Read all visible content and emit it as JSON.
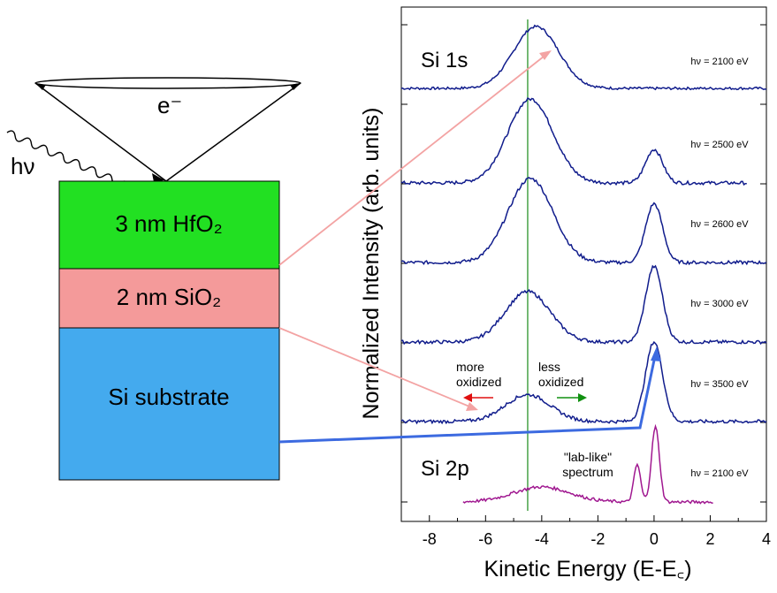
{
  "colors": {
    "hfo2": "#22e022",
    "sio2": "#f49a9a",
    "si": "#44aaee",
    "spectrum_1s": "#101c8c",
    "spectrum_2p": "#a01890",
    "guide_line": "#1a8a1a",
    "arrow_pink": "#f3a3a3",
    "arrow_blue": "#3c6ae0",
    "arrow_red": "#e01010",
    "arrow_green": "#109010"
  },
  "schematic": {
    "photon_label": "hν",
    "electron_label": "e⁻",
    "layers": [
      {
        "name": "hfo2",
        "text": "3 nm HfO₂"
      },
      {
        "name": "sio2",
        "text": "2 nm SiO₂"
      },
      {
        "name": "si",
        "text": "Si substrate"
      }
    ]
  },
  "chart_data": {
    "type": "line",
    "xlabel": "Kinetic Energy (E-E꜀)",
    "ylabel": "Normalized Intensity (arb. units)",
    "xlim": [
      -9,
      4
    ],
    "xticks": [
      -8,
      -6,
      -4,
      -2,
      0,
      2,
      4
    ],
    "xtick_labels": [
      "-8",
      "-6",
      "-4",
      "-2",
      "0",
      "2",
      "4"
    ],
    "guide_x": -4.5,
    "labels": {
      "si1s": "Si 1s",
      "si2p": "Si 2p",
      "more_oxidized": [
        "more",
        "oxidized"
      ],
      "less_oxidized": [
        "less",
        "oxidized"
      ],
      "lab_like": [
        "\"lab-like\"",
        "spectrum"
      ]
    },
    "series": [
      {
        "energy_label": "hν = 2100 eV",
        "line": "Si 1s",
        "x_range": [
          -9,
          4
        ],
        "peaks": [
          [
            -4.2,
            0.8,
            1.0
          ]
        ],
        "oxide_peak": -4.2
      },
      {
        "energy_label": "hν = 2500 eV",
        "line": "Si 1s",
        "x_range": [
          -9,
          3.3
        ],
        "peaks": [
          [
            -4.4,
            0.8,
            1.0
          ],
          [
            0.0,
            0.3,
            0.4
          ]
        ]
      },
      {
        "energy_label": "hν = 2600 eV",
        "line": "Si 1s",
        "x_range": [
          -9,
          4
        ],
        "peaks": [
          [
            -4.4,
            0.8,
            1.0
          ],
          [
            0.0,
            0.3,
            0.7
          ]
        ]
      },
      {
        "energy_label": "hν = 3000 eV",
        "line": "Si 1s",
        "x_range": [
          -9,
          4
        ],
        "peaks": [
          [
            -4.5,
            0.8,
            0.6
          ],
          [
            0.0,
            0.3,
            0.9
          ]
        ]
      },
      {
        "energy_label": "hν = 3500 eV",
        "line": "Si 1s",
        "x_range": [
          -9,
          4
        ],
        "peaks": [
          [
            -4.5,
            0.8,
            0.32
          ],
          [
            0.0,
            0.3,
            0.95
          ]
        ]
      },
      {
        "energy_label": "hν = 2100 eV",
        "line": "Si 2p",
        "x_range": [
          -6.8,
          2.1
        ],
        "peaks": [
          [
            -4.0,
            1.0,
            0.2
          ],
          [
            -0.6,
            0.12,
            0.5
          ],
          [
            0.05,
            0.14,
            1.0
          ]
        ]
      }
    ]
  }
}
